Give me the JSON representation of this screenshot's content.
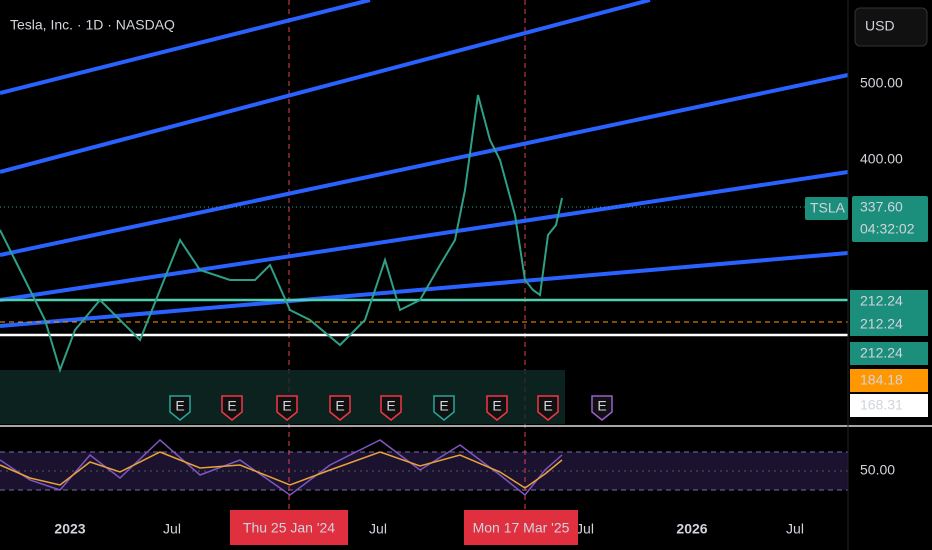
{
  "header": {
    "title": "Tesla, Inc. · 1D · NASDAQ",
    "currency": "USD"
  },
  "price_axis": {
    "labels": [
      "500.00",
      "400.00"
    ]
  },
  "rsi_axis": {
    "labels": [
      "50.00"
    ]
  },
  "symbol_badge": "TSLA",
  "last_price": {
    "price": "337.60",
    "countdown": "04:32:02"
  },
  "level_badges": [
    "212.24",
    "212.24",
    "212.24",
    "184.18",
    "168.31"
  ],
  "events": [
    "E",
    "E",
    "E",
    "E",
    "E",
    "E",
    "E",
    "E",
    "E"
  ],
  "time_axis": [
    "2023",
    "Jul",
    "Jul",
    "Jul",
    "2026",
    "Jul"
  ],
  "crosshair_labels": [
    "Thu 25 Jan '24",
    "Mon 17 Mar '25"
  ]
}
